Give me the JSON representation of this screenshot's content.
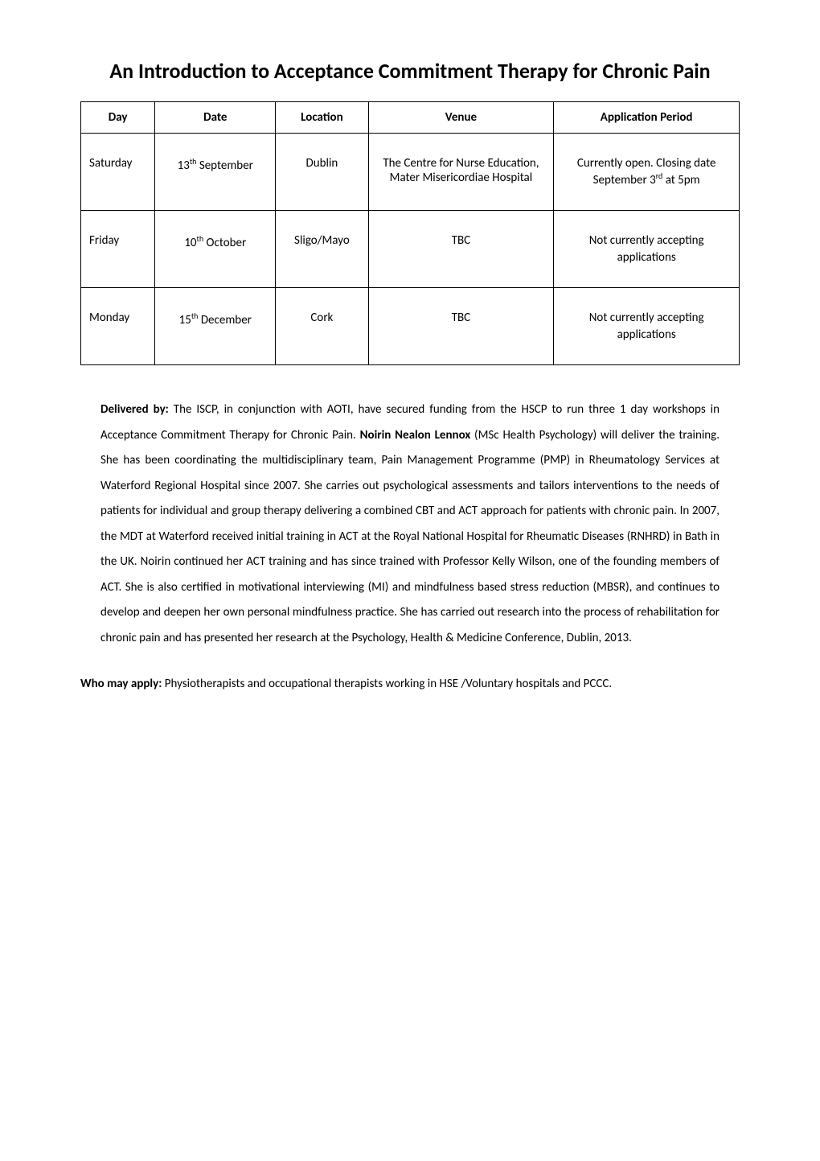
{
  "title": "An Introduction to Acceptance Commitment Therapy for Chronic Pain",
  "table": {
    "headers": {
      "day": "Day",
      "date": "Date",
      "location": "Location",
      "venue": "Venue",
      "period": "Application Period"
    },
    "rows": [
      {
        "day": "Saturday",
        "date_pre": "13",
        "date_sup": "th",
        "date_post": " September",
        "location": "Dublin",
        "venue": "The Centre for Nurse Education, Mater Misericordiae Hospital",
        "period_pre": "Currently open. Closing date September 3",
        "period_sup": "rd",
        "period_post": " at 5pm"
      },
      {
        "day": "Friday",
        "date_pre": "10",
        "date_sup": "th",
        "date_post": " October",
        "location": "Sligo/Mayo",
        "venue": "TBC",
        "period_pre": "Not currently accepting applications",
        "period_sup": "",
        "period_post": ""
      },
      {
        "day": "Monday",
        "date_pre": "15",
        "date_sup": "th",
        "date_post": " December",
        "location": "Cork",
        "venue": "TBC",
        "period_pre": "Not currently accepting applications",
        "period_sup": "",
        "period_post": ""
      }
    ]
  },
  "para1": {
    "label1": "Delivered by: ",
    "text1": "The ISCP, in conjunction with AOTI, have secured funding from the HSCP to run three 1 day workshops in Acceptance Commitment Therapy for Chronic Pain.  ",
    "label2": "Noirin Nealon Lennox ",
    "text2": "(MSc Health Psychology) will deliver the training. She has been coordinating the multidisciplinary team, Pain Management Programme (PMP) in Rheumatology Services at Waterford Regional Hospital since 2007. She carries out psychological assessments and tailors interventions to the needs of patients for individual and group therapy delivering a combined CBT and ACT approach for patients with chronic pain. In 2007, the MDT at Waterford received initial training in ACT at the Royal National Hospital for Rheumatic Diseases (RNHRD) in Bath in the UK. Noirin continued her ACT training and has since trained with Professor Kelly Wilson, one of the founding members of ACT. She is also certified in motivational interviewing (MI) and mindfulness based stress reduction (MBSR), and continues to develop and deepen her own personal mindfulness practice. She has carried out research into the process of rehabilitation for chronic pain and has presented her research at the Psychology, Health & Medicine Conference, Dublin, 2013."
  },
  "para2": {
    "label": "Who may apply: ",
    "text": "Physiotherapists and occupational therapists working in HSE /Voluntary hospitals and PCCC."
  }
}
